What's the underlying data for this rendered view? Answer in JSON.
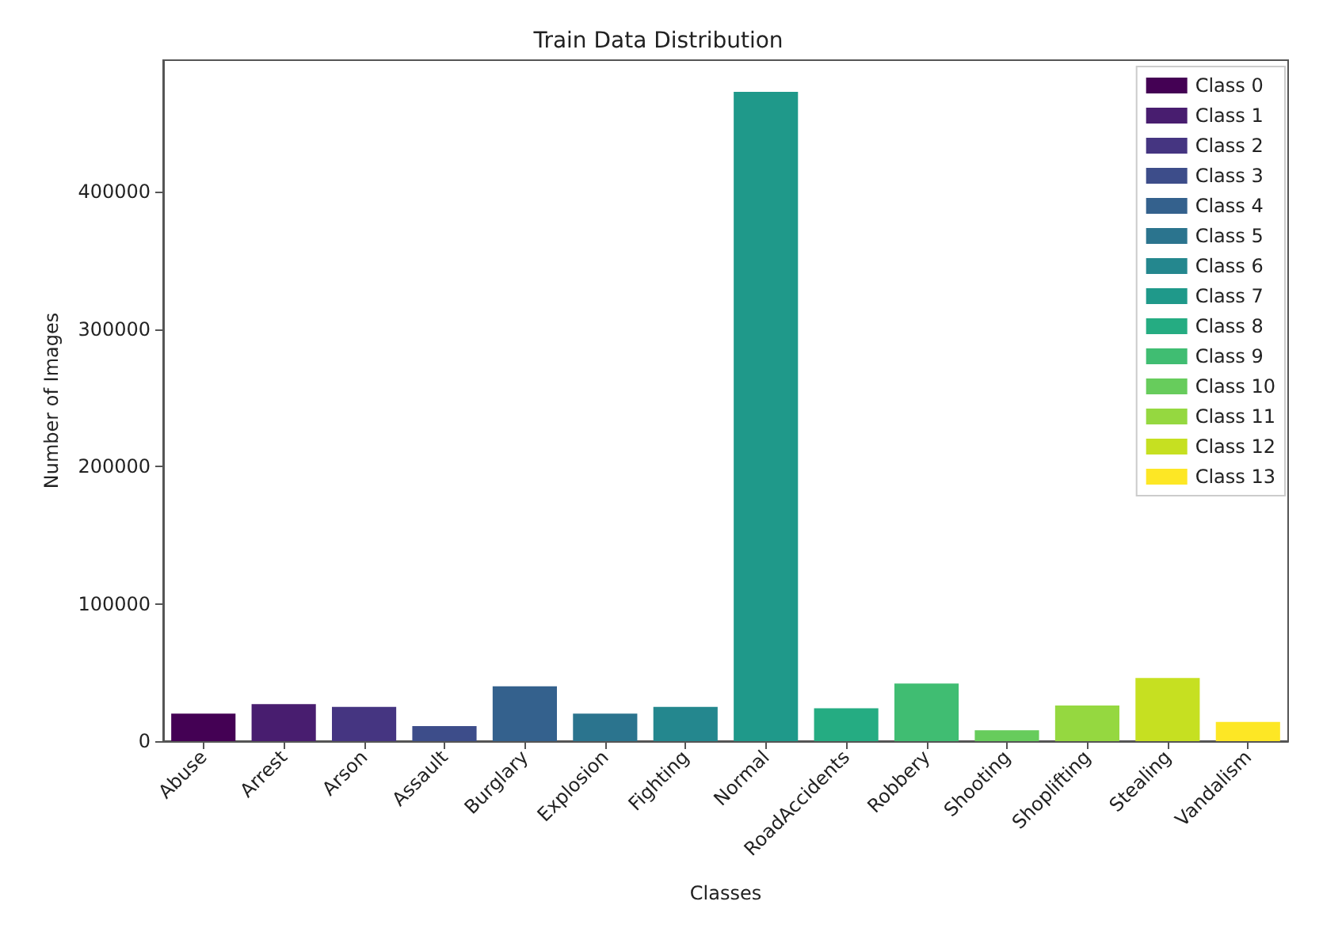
{
  "chart_data": {
    "type": "bar",
    "title": "Train Data Distribution",
    "xlabel": "Classes",
    "ylabel": "Number of Images",
    "categories": [
      "Abuse",
      "Arrest",
      "Arson",
      "Assault",
      "Burglary",
      "Explosion",
      "Fighting",
      "Normal",
      "RoadAccidents",
      "Robbery",
      "Shooting",
      "Shoplifting",
      "Stealing",
      "Vandalism"
    ],
    "stacked": true,
    "series": [
      {
        "name": "Class 0",
        "color": "#440154",
        "values": [
          20000,
          null,
          null,
          null,
          null,
          null,
          null,
          null,
          null,
          null,
          null,
          null,
          null,
          null
        ]
      },
      {
        "name": "Class 1",
        "color": "#481d6f",
        "values": [
          null,
          27000,
          null,
          null,
          null,
          null,
          null,
          null,
          null,
          null,
          null,
          null,
          null,
          null
        ]
      },
      {
        "name": "Class 2",
        "color": "#453581",
        "values": [
          null,
          null,
          25000,
          null,
          null,
          null,
          null,
          null,
          null,
          null,
          null,
          null,
          null,
          null
        ]
      },
      {
        "name": "Class 3",
        "color": "#3d4d8a",
        "values": [
          null,
          null,
          null,
          11000,
          null,
          null,
          null,
          null,
          null,
          null,
          null,
          null,
          null,
          null
        ]
      },
      {
        "name": "Class 4",
        "color": "#34618d",
        "values": [
          null,
          null,
          null,
          null,
          40000,
          null,
          null,
          null,
          null,
          null,
          null,
          null,
          null,
          null
        ]
      },
      {
        "name": "Class 5",
        "color": "#2b748e",
        "values": [
          null,
          null,
          null,
          null,
          null,
          20000,
          null,
          null,
          null,
          null,
          null,
          null,
          null,
          null
        ]
      },
      {
        "name": "Class 6",
        "color": "#24878e",
        "values": [
          null,
          null,
          null,
          null,
          null,
          null,
          25000,
          null,
          null,
          null,
          null,
          null,
          null,
          null
        ]
      },
      {
        "name": "Class 7",
        "color": "#1f998a",
        "values": [
          null,
          null,
          null,
          null,
          null,
          null,
          null,
          473000,
          null,
          null,
          null,
          null,
          null,
          null
        ]
      },
      {
        "name": "Class 8",
        "color": "#25ac82",
        "values": [
          null,
          null,
          null,
          null,
          null,
          null,
          null,
          null,
          24000,
          null,
          null,
          null,
          null,
          null
        ]
      },
      {
        "name": "Class 9",
        "color": "#40bd72",
        "values": [
          null,
          null,
          null,
          null,
          null,
          null,
          null,
          null,
          null,
          42000,
          null,
          null,
          null,
          null
        ]
      },
      {
        "name": "Class 10",
        "color": "#67cc5c",
        "values": [
          null,
          null,
          null,
          null,
          null,
          null,
          null,
          null,
          null,
          null,
          8000,
          null,
          null,
          null
        ]
      },
      {
        "name": "Class 11",
        "color": "#95d840",
        "values": [
          null,
          null,
          null,
          null,
          null,
          null,
          null,
          null,
          null,
          null,
          null,
          26000,
          null,
          null
        ]
      },
      {
        "name": "Class 12",
        "color": "#c6e021",
        "values": [
          null,
          null,
          null,
          null,
          null,
          null,
          null,
          null,
          null,
          null,
          null,
          null,
          46000,
          null
        ]
      },
      {
        "name": "Class 13",
        "color": "#fde725",
        "values": [
          null,
          null,
          null,
          null,
          null,
          null,
          null,
          null,
          null,
          null,
          null,
          null,
          null,
          14000
        ]
      }
    ],
    "ylim": [
      0,
      496000
    ],
    "yticks": [
      0,
      100000,
      200000,
      300000,
      400000
    ],
    "grid": false,
    "legend": "top right"
  }
}
